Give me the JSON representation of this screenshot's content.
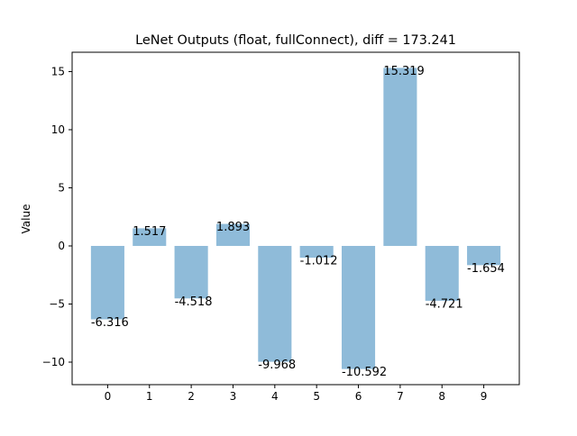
{
  "chart_data": {
    "type": "bar",
    "title": "LeNet Outputs (float, fullConnect), diff = 173.241",
    "xlabel": "",
    "ylabel": "Value",
    "categories": [
      "0",
      "1",
      "2",
      "3",
      "4",
      "5",
      "6",
      "7",
      "8",
      "9"
    ],
    "values": [
      -6.316,
      1.517,
      -4.518,
      1.893,
      -9.968,
      -1.012,
      -10.592,
      15.319,
      -4.721,
      -1.654
    ],
    "data_labels": [
      "-6.316",
      "1.517",
      "-4.518",
      "1.893",
      "-9.968",
      "-1.012",
      "-10.592",
      "15.319",
      "-4.721",
      "-1.654"
    ],
    "ylim": [
      -11.938,
      16.665
    ],
    "yticks": [
      -10,
      -5,
      0,
      5,
      10,
      15
    ],
    "ytick_labels": [
      "−10",
      "−5",
      "0",
      "5",
      "10",
      "15"
    ],
    "grid": false,
    "legend": null,
    "colors": {
      "bar": "#8fbbd9",
      "axes": "#000000"
    }
  }
}
